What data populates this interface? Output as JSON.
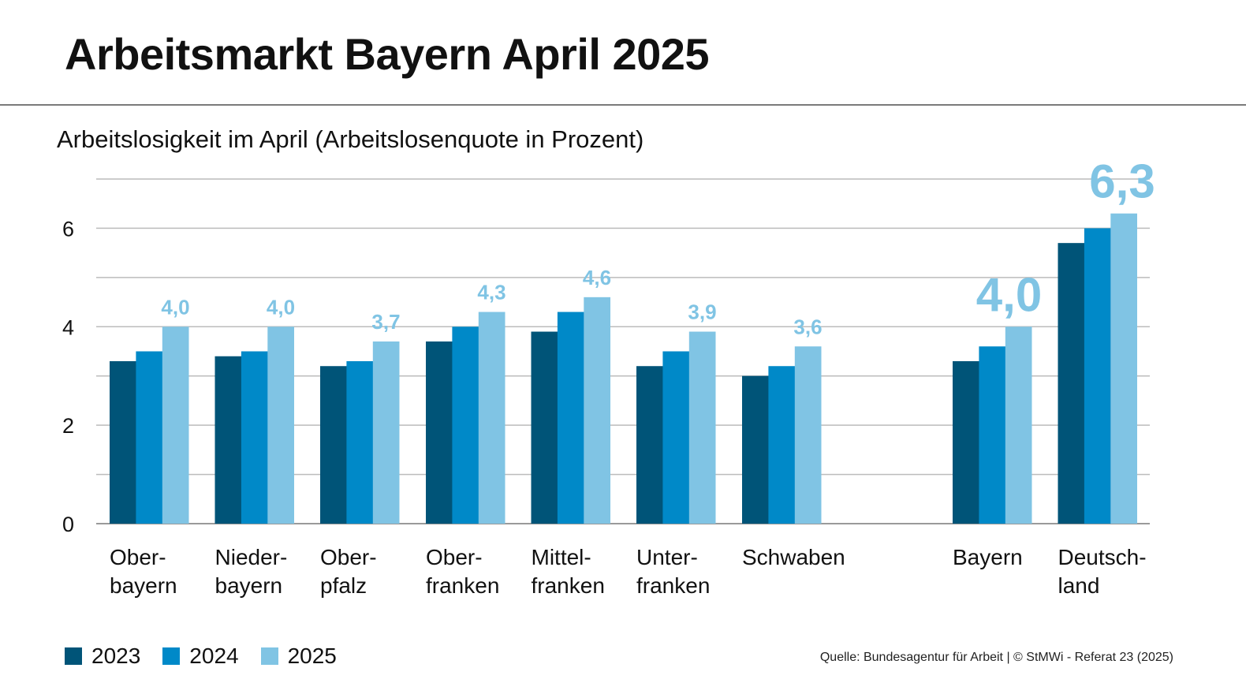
{
  "title": "Arbeitsmarkt Bayern April 2025",
  "subtitle": "Arbeitslosigkeit im April (Arbeitslosenquote in Prozent)",
  "source": "Quelle: Bundesagentur für Arbeit  | © StMWi - Referat 23 (2025)",
  "colors": {
    "2023": "#005478",
    "2024": "#0089c8",
    "2025": "#80c4e4",
    "grid": "#bcbcbc",
    "axis": "#9a9a9a"
  },
  "chart_data": {
    "type": "bar",
    "categories": [
      [
        "Ober-",
        "bayern"
      ],
      [
        "Nieder-",
        "bayern"
      ],
      [
        "Ober-",
        "pfalz"
      ],
      [
        "Ober-",
        "franken"
      ],
      [
        "Mittel-",
        "franken"
      ],
      [
        "Unter-",
        "franken"
      ],
      [
        "Schwaben"
      ],
      [
        "Bayern"
      ],
      [
        "Deutsch-",
        "land"
      ]
    ],
    "series": [
      {
        "name": "2023",
        "values": [
          3.3,
          3.4,
          3.2,
          3.7,
          3.9,
          3.2,
          3.0,
          3.3,
          5.7
        ]
      },
      {
        "name": "2024",
        "values": [
          3.5,
          3.5,
          3.3,
          4.0,
          4.3,
          3.5,
          3.2,
          3.6,
          6.0
        ]
      },
      {
        "name": "2025",
        "values": [
          4.0,
          4.0,
          3.7,
          4.3,
          4.6,
          3.9,
          3.6,
          4.0,
          6.3
        ]
      }
    ],
    "data_labels_2025": [
      "4,0",
      "4,0",
      "3,7",
      "4,3",
      "4,6",
      "3,9",
      "3,6",
      "4,0",
      "6,3"
    ],
    "highlighted_labels": [
      7,
      8
    ],
    "ylim": [
      0,
      7
    ],
    "yticks": [
      0,
      2,
      4,
      6
    ],
    "ytick_labels": [
      "0",
      "2",
      "4",
      "6"
    ],
    "grid_step": 1,
    "grid": true,
    "legend_position": "bottom-left",
    "xlabel": "",
    "ylabel": ""
  }
}
